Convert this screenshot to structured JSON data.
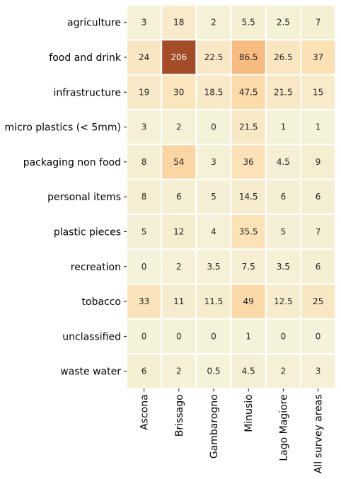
{
  "chart_data": {
    "type": "heatmap",
    "title": "",
    "xlabel": "",
    "ylabel": "",
    "rows": [
      "agriculture",
      "food and drink",
      "infrastructure",
      "micro plastics (< 5mm)",
      "packaging non food",
      "personal items",
      "plastic pieces",
      "recreation",
      "tobacco",
      "unclassified",
      "waste water"
    ],
    "columns": [
      "Ascona",
      "Brissago",
      "Gambarogno",
      "Minusio",
      "Lago Magiore",
      "All survey areas"
    ],
    "values": [
      [
        3,
        18,
        2,
        5.5,
        2.5,
        7
      ],
      [
        24,
        206,
        22.5,
        86.5,
        26.5,
        37
      ],
      [
        19,
        30,
        18.5,
        47.5,
        21.5,
        15
      ],
      [
        3,
        2,
        0,
        21.5,
        1,
        1
      ],
      [
        8,
        54,
        3,
        36,
        4.5,
        9
      ],
      [
        8,
        6,
        5,
        14.5,
        6,
        6
      ],
      [
        5,
        12,
        4,
        35.5,
        5,
        7
      ],
      [
        0,
        2,
        3.5,
        7.5,
        3.5,
        6
      ],
      [
        33,
        11,
        11.5,
        49,
        12.5,
        25
      ],
      [
        0,
        0,
        0,
        1,
        0,
        0
      ],
      [
        6,
        2,
        0.5,
        4.5,
        2,
        3
      ]
    ],
    "labels": [
      [
        "3",
        "18",
        "2",
        "5.5",
        "2.5",
        "7"
      ],
      [
        "24",
        "206",
        "22.5",
        "86.5",
        "26.5",
        "37"
      ],
      [
        "19",
        "30",
        "18.5",
        "47.5",
        "21.5",
        "15"
      ],
      [
        "3",
        "2",
        "0",
        "21.5",
        "1",
        "1"
      ],
      [
        "8",
        "54",
        "3",
        "36",
        "4.5",
        "9"
      ],
      [
        "8",
        "6",
        "5",
        "14.5",
        "6",
        "6"
      ],
      [
        "5",
        "12",
        "4",
        "35.5",
        "5",
        "7"
      ],
      [
        "0",
        "2",
        "3.5",
        "7.5",
        "3.5",
        "6"
      ],
      [
        "33",
        "11",
        "11.5",
        "49",
        "12.5",
        "25"
      ],
      [
        "0",
        "0",
        "0",
        "1",
        "0",
        "0"
      ],
      [
        "6",
        "2",
        "0.5",
        "4.5",
        "2",
        "3"
      ]
    ],
    "colorscale": {
      "stops": [
        {
          "value": 0,
          "color": "#f4f2d9"
        },
        {
          "value": 20,
          "color": "#f8e9c8"
        },
        {
          "value": 40,
          "color": "#fde0b2"
        },
        {
          "value": 90,
          "color": "#f7b77c"
        },
        {
          "value": 140,
          "color": "#d98047"
        },
        {
          "value": 206,
          "color": "#a24d28"
        }
      ],
      "dark_text_threshold": 150,
      "colorbar": false
    },
    "grid": "white cell separators",
    "legend": "none"
  }
}
